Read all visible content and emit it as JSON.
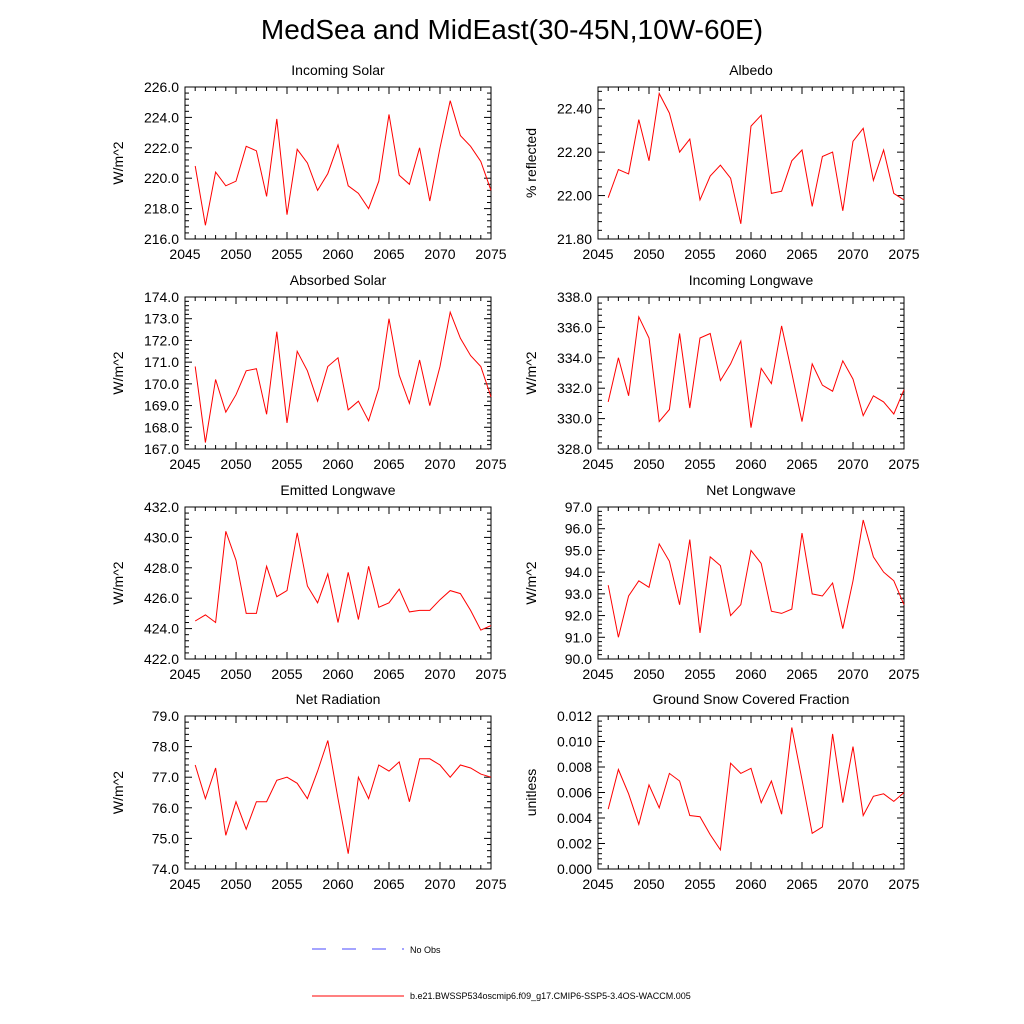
{
  "title": "MedSea and MidEast(30-45N,10W-60E)",
  "colors": {
    "model": "#ff0000",
    "obs": "#4a4aff",
    "axis": "#000000"
  },
  "legend": {
    "obs_label": "No Obs",
    "model_label": "b.e21.BWSSP534oscmip6.f09_g17.CMIP6-SSP5-3.4OS-WACCM.005"
  },
  "chart_data": [
    {
      "type": "line",
      "title": "Incoming Solar",
      "ylabel": "W/m^2",
      "xlim": [
        2045,
        2075
      ],
      "ylim": [
        216,
        226
      ],
      "yticks": [
        216,
        218,
        220,
        222,
        224,
        226
      ],
      "ydecimals": 1,
      "x": [
        2046,
        2047,
        2048,
        2049,
        2050,
        2051,
        2052,
        2053,
        2054,
        2055,
        2056,
        2057,
        2058,
        2059,
        2060,
        2061,
        2062,
        2063,
        2064,
        2065,
        2066,
        2067,
        2068,
        2069,
        2070,
        2071,
        2072,
        2073,
        2074,
        2075
      ],
      "series": [
        {
          "name": "b.e21.BWSSP534oscmip6.f09_g17.CMIP6-SSP5-3.4OS-WACCM.005",
          "values": [
            220.8,
            216.9,
            220.4,
            219.5,
            219.8,
            222.1,
            221.8,
            218.8,
            223.9,
            217.6,
            221.9,
            221.0,
            219.2,
            220.3,
            222.2,
            219.5,
            219.0,
            218.0,
            219.8,
            224.2,
            220.2,
            219.6,
            222.0,
            218.5,
            222.0,
            225.1,
            222.8,
            222.1,
            221.1,
            219.2
          ]
        }
      ]
    },
    {
      "type": "line",
      "title": "Albedo",
      "ylabel": "% reflected",
      "xlim": [
        2045,
        2075
      ],
      "ylim": [
        21.8,
        22.5
      ],
      "yticks": [
        21.8,
        22.0,
        22.2,
        22.4
      ],
      "ydecimals": 2,
      "x": [
        2046,
        2047,
        2048,
        2049,
        2050,
        2051,
        2052,
        2053,
        2054,
        2055,
        2056,
        2057,
        2058,
        2059,
        2060,
        2061,
        2062,
        2063,
        2064,
        2065,
        2066,
        2067,
        2068,
        2069,
        2070,
        2071,
        2072,
        2073,
        2074,
        2075
      ],
      "series": [
        {
          "name": "b.e21.BWSSP534oscmip6.f09_g17.CMIP6-SSP5-3.4OS-WACCM.005",
          "values": [
            21.99,
            22.12,
            22.1,
            22.35,
            22.16,
            22.47,
            22.38,
            22.2,
            22.26,
            21.98,
            22.09,
            22.14,
            22.08,
            21.87,
            22.32,
            22.37,
            22.01,
            22.02,
            22.16,
            22.21,
            21.95,
            22.18,
            22.2,
            21.93,
            22.25,
            22.31,
            22.07,
            22.21,
            22.01,
            21.98
          ]
        }
      ]
    },
    {
      "type": "line",
      "title": "Absorbed Solar",
      "ylabel": "W/m^2",
      "xlim": [
        2045,
        2075
      ],
      "ylim": [
        167,
        174
      ],
      "yticks": [
        167,
        168,
        169,
        170,
        171,
        172,
        173,
        174
      ],
      "ydecimals": 1,
      "x": [
        2046,
        2047,
        2048,
        2049,
        2050,
        2051,
        2052,
        2053,
        2054,
        2055,
        2056,
        2057,
        2058,
        2059,
        2060,
        2061,
        2062,
        2063,
        2064,
        2065,
        2066,
        2067,
        2068,
        2069,
        2070,
        2071,
        2072,
        2073,
        2074,
        2075
      ],
      "series": [
        {
          "name": "b.e21.BWSSP534oscmip6.f09_g17.CMIP6-SSP5-3.4OS-WACCM.005",
          "values": [
            170.8,
            167.3,
            170.2,
            168.7,
            169.5,
            170.6,
            170.7,
            168.6,
            172.4,
            168.2,
            171.5,
            170.6,
            169.2,
            170.8,
            171.2,
            168.8,
            169.2,
            168.3,
            169.8,
            173.0,
            170.4,
            169.1,
            171.1,
            169.0,
            170.8,
            173.3,
            172.1,
            171.3,
            170.8,
            169.4
          ]
        }
      ]
    },
    {
      "type": "line",
      "title": "Incoming Longwave",
      "ylabel": "W/m^2",
      "xlim": [
        2045,
        2075
      ],
      "ylim": [
        328,
        338
      ],
      "yticks": [
        328,
        330,
        332,
        334,
        336,
        338
      ],
      "ydecimals": 1,
      "x": [
        2046,
        2047,
        2048,
        2049,
        2050,
        2051,
        2052,
        2053,
        2054,
        2055,
        2056,
        2057,
        2058,
        2059,
        2060,
        2061,
        2062,
        2063,
        2064,
        2065,
        2066,
        2067,
        2068,
        2069,
        2070,
        2071,
        2072,
        2073,
        2074,
        2075
      ],
      "series": [
        {
          "name": "b.e21.BWSSP534oscmip6.f09_g17.CMIP6-SSP5-3.4OS-WACCM.005",
          "values": [
            331.1,
            334.0,
            331.5,
            336.7,
            335.3,
            329.8,
            330.6,
            335.6,
            330.7,
            335.3,
            335.6,
            332.5,
            333.6,
            335.1,
            329.4,
            333.3,
            332.3,
            336.1,
            333.0,
            329.8,
            333.6,
            332.2,
            331.8,
            333.8,
            332.6,
            330.2,
            331.5,
            331.1,
            330.3,
            331.9
          ]
        }
      ]
    },
    {
      "type": "line",
      "title": "Emitted Longwave",
      "ylabel": "W/m^2",
      "xlim": [
        2045,
        2075
      ],
      "ylim": [
        422,
        432
      ],
      "yticks": [
        422,
        424,
        426,
        428,
        430,
        432
      ],
      "ydecimals": 1,
      "x": [
        2046,
        2047,
        2048,
        2049,
        2050,
        2051,
        2052,
        2053,
        2054,
        2055,
        2056,
        2057,
        2058,
        2059,
        2060,
        2061,
        2062,
        2063,
        2064,
        2065,
        2066,
        2067,
        2068,
        2069,
        2070,
        2071,
        2072,
        2073,
        2074,
        2075
      ],
      "series": [
        {
          "name": "b.e21.BWSSP534oscmip6.f09_g17.CMIP6-SSP5-3.4OS-WACCM.005",
          "values": [
            424.5,
            424.9,
            424.4,
            430.4,
            428.5,
            425.0,
            425.0,
            428.1,
            426.1,
            426.5,
            430.3,
            426.8,
            425.7,
            427.6,
            424.4,
            427.7,
            424.6,
            428.1,
            425.4,
            425.7,
            426.6,
            425.1,
            425.2,
            425.2,
            425.9,
            426.5,
            426.3,
            425.2,
            423.9,
            424.2
          ]
        }
      ]
    },
    {
      "type": "line",
      "title": "Net Longwave",
      "ylabel": "W/m^2",
      "xlim": [
        2045,
        2075
      ],
      "ylim": [
        90,
        97
      ],
      "yticks": [
        90,
        91,
        92,
        93,
        94,
        95,
        96,
        97
      ],
      "ydecimals": 1,
      "x": [
        2046,
        2047,
        2048,
        2049,
        2050,
        2051,
        2052,
        2053,
        2054,
        2055,
        2056,
        2057,
        2058,
        2059,
        2060,
        2061,
        2062,
        2063,
        2064,
        2065,
        2066,
        2067,
        2068,
        2069,
        2070,
        2071,
        2072,
        2073,
        2074,
        2075
      ],
      "series": [
        {
          "name": "b.e21.BWSSP534oscmip6.f09_g17.CMIP6-SSP5-3.4OS-WACCM.005",
          "values": [
            93.4,
            91.0,
            92.9,
            93.6,
            93.3,
            95.3,
            94.5,
            92.5,
            95.5,
            91.2,
            94.7,
            94.3,
            92.0,
            92.5,
            95.0,
            94.4,
            92.2,
            92.1,
            92.3,
            95.8,
            93.0,
            92.9,
            93.5,
            91.4,
            93.6,
            96.4,
            94.7,
            94.0,
            93.6,
            92.5
          ]
        }
      ]
    },
    {
      "type": "line",
      "title": "Net Radiation",
      "ylabel": "W/m^2",
      "xlim": [
        2045,
        2075
      ],
      "ylim": [
        74,
        79
      ],
      "yticks": [
        74,
        75,
        76,
        77,
        78,
        79
      ],
      "ydecimals": 1,
      "x": [
        2046,
        2047,
        2048,
        2049,
        2050,
        2051,
        2052,
        2053,
        2054,
        2055,
        2056,
        2057,
        2058,
        2059,
        2060,
        2061,
        2062,
        2063,
        2064,
        2065,
        2066,
        2067,
        2068,
        2069,
        2070,
        2071,
        2072,
        2073,
        2074,
        2075
      ],
      "series": [
        {
          "name": "b.e21.BWSSP534oscmip6.f09_g17.CMIP6-SSP5-3.4OS-WACCM.005",
          "values": [
            77.4,
            76.3,
            77.3,
            75.1,
            76.2,
            75.3,
            76.2,
            76.2,
            76.9,
            77.0,
            76.8,
            76.3,
            77.2,
            78.2,
            76.3,
            74.5,
            77.0,
            76.3,
            77.4,
            77.2,
            77.5,
            76.2,
            77.6,
            77.6,
            77.4,
            77.0,
            77.4,
            77.3,
            77.1,
            77.0
          ]
        }
      ]
    },
    {
      "type": "line",
      "title": "Ground Snow Covered Fraction",
      "ylabel": "unitless",
      "xlim": [
        2045,
        2075
      ],
      "ylim": [
        0,
        0.012
      ],
      "yticks": [
        0,
        0.002,
        0.004,
        0.006,
        0.008,
        0.01,
        0.012
      ],
      "ydecimals": 3,
      "x": [
        2046,
        2047,
        2048,
        2049,
        2050,
        2051,
        2052,
        2053,
        2054,
        2055,
        2056,
        2057,
        2058,
        2059,
        2060,
        2061,
        2062,
        2063,
        2064,
        2065,
        2066,
        2067,
        2068,
        2069,
        2070,
        2071,
        2072,
        2073,
        2074,
        2075
      ],
      "series": [
        {
          "name": "b.e21.BWSSP534oscmip6.f09_g17.CMIP6-SSP5-3.4OS-WACCM.005",
          "values": [
            0.0047,
            0.0078,
            0.0059,
            0.0035,
            0.0066,
            0.0048,
            0.0075,
            0.0069,
            0.0042,
            0.0041,
            0.0027,
            0.0015,
            0.0083,
            0.0075,
            0.0079,
            0.0052,
            0.0069,
            0.0043,
            0.0111,
            0.007,
            0.0028,
            0.0033,
            0.0106,
            0.0052,
            0.0096,
            0.0042,
            0.0057,
            0.0059,
            0.0053,
            0.006
          ]
        }
      ]
    }
  ]
}
